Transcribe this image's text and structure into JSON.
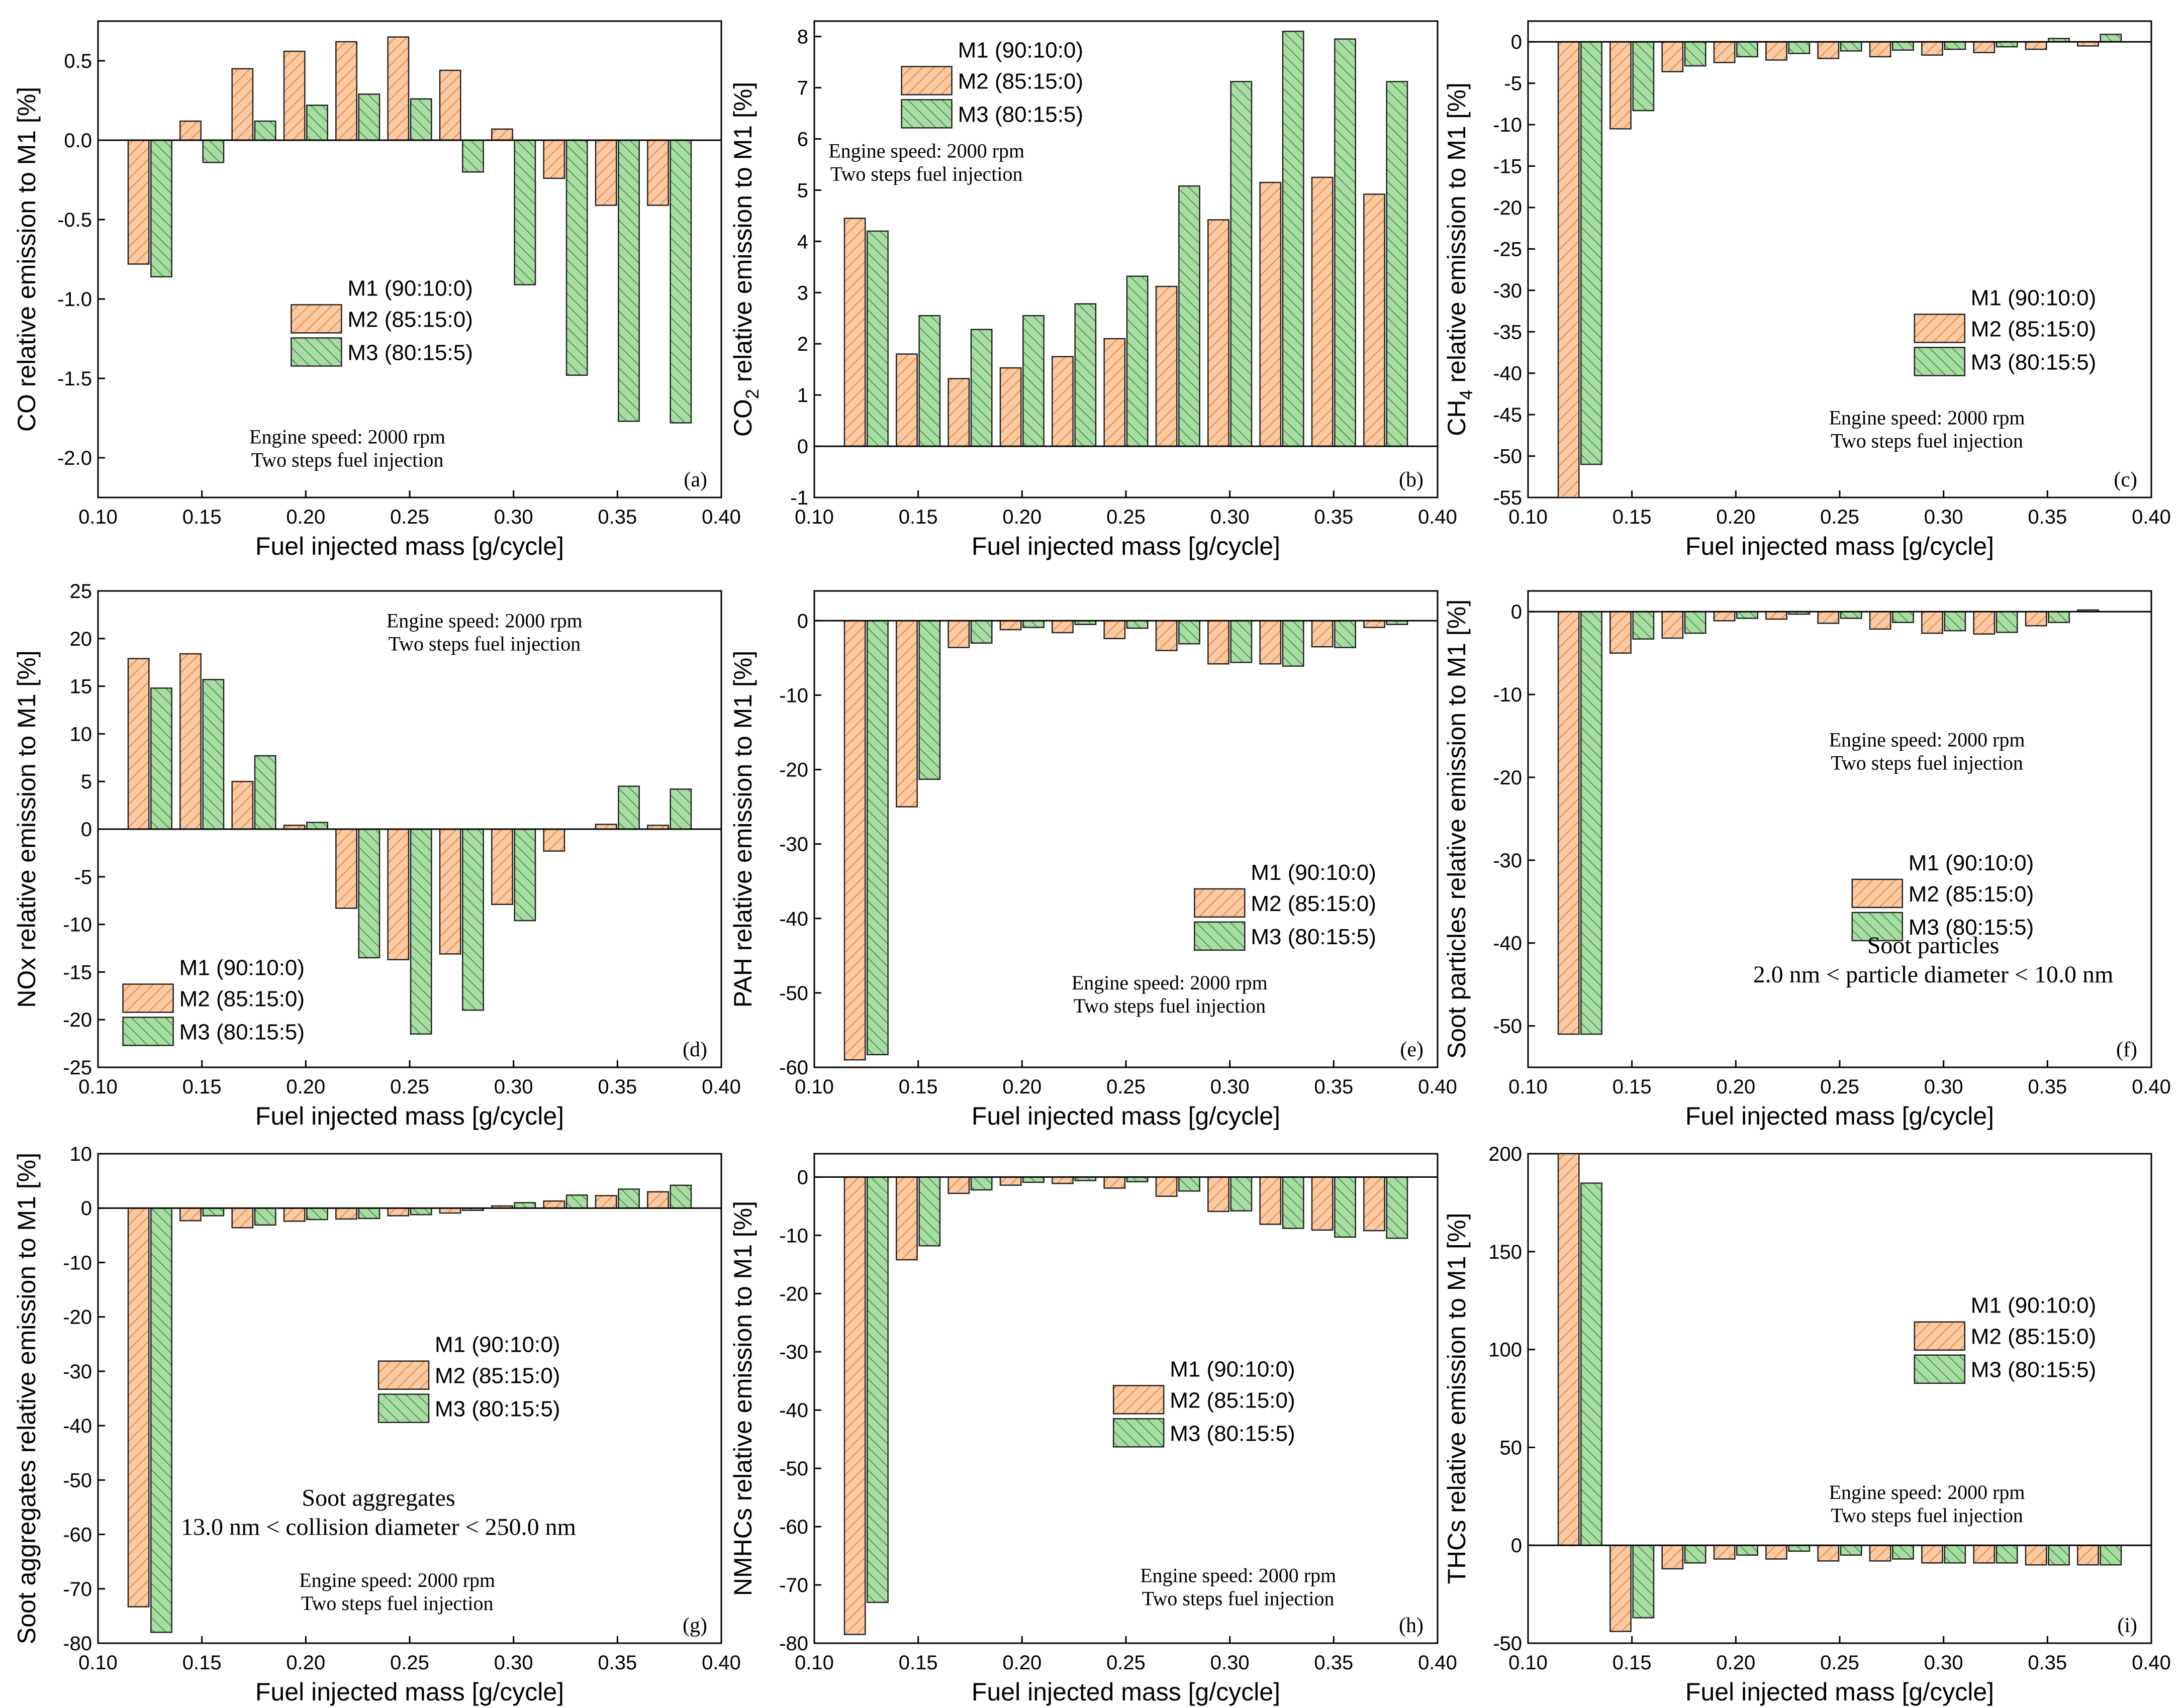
{
  "figure": {
    "legend_labels": [
      "M1 (90:10:0)",
      "M2 (85:15:0)",
      "M3 (80:15:5)"
    ],
    "colors": {
      "M2": "#fbc9a2",
      "M2_stroke": "#e07a2a",
      "M3": "#a9dca3",
      "M3_stroke": "#2f8a3d",
      "axis": "#000000"
    }
  },
  "chart_data": [
    {
      "id": "a",
      "type": "bar",
      "panel_label": "(a)",
      "xlabel": "Fuel injected mass  [g/cycle]",
      "ylabel": "CO relative emission to M1 [%]",
      "ylabel_sub": null,
      "xlim": [
        0.1,
        0.4
      ],
      "ylim": [
        -2.25,
        0.75
      ],
      "xticks": [
        "0.10",
        "0.15",
        "0.20",
        "0.25",
        "0.30",
        "0.35",
        "0.40"
      ],
      "yticks": [
        "0.5",
        "0.0",
        "-0.5",
        "-1.0",
        "-1.5",
        "-2.0"
      ],
      "x": [
        0.125,
        0.15,
        0.175,
        0.2,
        0.225,
        0.25,
        0.275,
        0.3,
        0.325,
        0.35,
        0.375
      ],
      "series": [
        {
          "name": "M2 (85:15:0)",
          "values": [
            -0.78,
            0.12,
            0.45,
            0.56,
            0.62,
            0.65,
            0.44,
            0.07,
            -0.24,
            -0.41,
            -0.41
          ]
        },
        {
          "name": "M3 (80:15:5)",
          "values": [
            -0.86,
            -0.14,
            0.12,
            0.22,
            0.29,
            0.26,
            -0.2,
            -0.91,
            -1.48,
            -1.77,
            -1.78
          ]
        }
      ],
      "notes": [
        "Engine speed: 2000 rpm",
        "Two steps fuel injection"
      ],
      "extra_notes": []
    },
    {
      "id": "b",
      "type": "bar",
      "panel_label": "(b)",
      "xlabel": "Fuel injected mass  [g/cycle]",
      "ylabel": "CO",
      "ylabel_sub": "2",
      "ylabel_rest": " relative emission to M1 [%]",
      "xlim": [
        0.1,
        0.4
      ],
      "ylim": [
        -1,
        8.3
      ],
      "xticks": [
        "0.10",
        "0.15",
        "0.20",
        "0.25",
        "0.30",
        "0.35",
        "0.40"
      ],
      "yticks": [
        "-1",
        "0",
        "1",
        "2",
        "3",
        "4",
        "5",
        "6",
        "7",
        "8"
      ],
      "x": [
        0.125,
        0.15,
        0.175,
        0.2,
        0.225,
        0.25,
        0.275,
        0.3,
        0.325,
        0.35,
        0.375
      ],
      "series": [
        {
          "name": "M2 (85:15:0)",
          "values": [
            4.45,
            1.8,
            1.32,
            1.53,
            1.75,
            2.1,
            3.12,
            4.42,
            5.15,
            5.25,
            4.92
          ]
        },
        {
          "name": "M3 (80:15:5)",
          "values": [
            4.2,
            2.55,
            2.28,
            2.55,
            2.78,
            3.32,
            5.08,
            7.12,
            8.1,
            7.95,
            7.12
          ]
        }
      ],
      "notes": [
        "Engine speed: 2000 rpm",
        "Two steps fuel injection"
      ],
      "extra_notes": []
    },
    {
      "id": "c",
      "type": "bar",
      "panel_label": "(c)",
      "xlabel": "Fuel injected mass  [g/cycle]",
      "ylabel": "CH",
      "ylabel_sub": "4",
      "ylabel_rest": " relative emission to M1 [%]",
      "xlim": [
        0.1,
        0.4
      ],
      "ylim": [
        -55,
        2.5
      ],
      "xticks": [
        "0.10",
        "0.15",
        "0.20",
        "0.25",
        "0.30",
        "0.35",
        "0.40"
      ],
      "yticks": [
        "0",
        "-5",
        "-10",
        "-15",
        "-20",
        "-25",
        "-30",
        "-35",
        "-40",
        "-45",
        "-50",
        "-55"
      ],
      "x": [
        0.125,
        0.15,
        0.175,
        0.2,
        0.225,
        0.25,
        0.275,
        0.3,
        0.325,
        0.35,
        0.375
      ],
      "series": [
        {
          "name": "M2 (85:15:0)",
          "values": [
            -55,
            -10.5,
            -3.6,
            -2.5,
            -2.2,
            -2.0,
            -1.8,
            -1.6,
            -1.3,
            -0.9,
            -0.5
          ]
        },
        {
          "name": "M3 (80:15:5)",
          "values": [
            -51,
            -8.3,
            -2.9,
            -1.8,
            -1.4,
            -1.1,
            -1.0,
            -0.9,
            -0.6,
            0.4,
            0.9
          ]
        }
      ],
      "notes": [
        "Engine speed: 2000 rpm",
        "Two steps fuel injection"
      ],
      "extra_notes": []
    },
    {
      "id": "d",
      "type": "bar",
      "panel_label": "(d)",
      "xlabel": "Fuel injected mass  [g/cycle]",
      "ylabel": "NOx relative emission to M1 [%]",
      "ylabel_sub": null,
      "xlim": [
        0.1,
        0.4
      ],
      "ylim": [
        -25,
        25
      ],
      "xticks": [
        "0.10",
        "0.15",
        "0.20",
        "0.25",
        "0.30",
        "0.35",
        "0.40"
      ],
      "yticks": [
        "25",
        "20",
        "15",
        "10",
        "5",
        "0",
        "-5",
        "-10",
        "-15",
        "-20",
        "-25"
      ],
      "x": [
        0.125,
        0.15,
        0.175,
        0.2,
        0.225,
        0.25,
        0.275,
        0.3,
        0.325,
        0.35,
        0.375
      ],
      "series": [
        {
          "name": "M2 (85:15:0)",
          "values": [
            17.9,
            18.4,
            5.0,
            0.4,
            -8.3,
            -13.7,
            -13.1,
            -7.9,
            -2.3,
            0.5,
            0.4
          ]
        },
        {
          "name": "M3 (80:15:5)",
          "values": [
            14.8,
            15.7,
            7.7,
            0.7,
            -13.5,
            -21.5,
            -19.0,
            -9.6,
            null,
            4.5,
            4.2
          ]
        }
      ],
      "notes": [
        "Engine speed: 2000 rpm",
        "Two steps fuel injection"
      ],
      "extra_notes": []
    },
    {
      "id": "e",
      "type": "bar",
      "panel_label": "(e)",
      "xlabel": "Fuel injected mass  [g/cycle]",
      "ylabel": "PAH relative emission to M1 [%]",
      "ylabel_sub": null,
      "xlim": [
        0.1,
        0.4
      ],
      "ylim": [
        -60,
        4
      ],
      "xticks": [
        "0.10",
        "0.15",
        "0.20",
        "0.25",
        "0.30",
        "0.35",
        "0.40"
      ],
      "yticks": [
        "0",
        "-10",
        "-20",
        "-30",
        "-40",
        "-50",
        "-60"
      ],
      "x": [
        0.125,
        0.15,
        0.175,
        0.2,
        0.225,
        0.25,
        0.275,
        0.3,
        0.325,
        0.35,
        0.375
      ],
      "series": [
        {
          "name": "M2 (85:15:0)",
          "values": [
            -59,
            -25,
            -3.6,
            -1.2,
            -1.6,
            -2.4,
            -4.0,
            -5.8,
            -5.8,
            -3.5,
            -0.9
          ]
        },
        {
          "name": "M3 (80:15:5)",
          "values": [
            -58.3,
            -21.3,
            -3.0,
            -0.9,
            -0.5,
            -1.0,
            -3.1,
            -5.6,
            -6.1,
            -3.6,
            -0.5
          ]
        }
      ],
      "notes": [
        "Engine speed: 2000 rpm",
        "Two steps fuel injection"
      ],
      "extra_notes": []
    },
    {
      "id": "f",
      "type": "bar",
      "panel_label": "(f)",
      "xlabel": "Fuel injected mass  [g/cycle]",
      "ylabel": "Soot particles relative emission to M1 [%]",
      "ylabel_sub": null,
      "xlim": [
        0.1,
        0.4
      ],
      "ylim": [
        -55,
        2.5
      ],
      "xticks": [
        "0.10",
        "0.15",
        "0.20",
        "0.25",
        "0.30",
        "0.35",
        "0.40"
      ],
      "yticks": [
        "0",
        "-10",
        "-20",
        "-30",
        "-40",
        "-50"
      ],
      "x": [
        0.125,
        0.15,
        0.175,
        0.2,
        0.225,
        0.25,
        0.275,
        0.3,
        0.325,
        0.35,
        0.375
      ],
      "series": [
        {
          "name": "M2 (85:15:0)",
          "values": [
            -51,
            -5.0,
            -3.2,
            -1.1,
            -0.9,
            -1.4,
            -2.1,
            -2.6,
            -2.7,
            -1.7,
            0.2
          ]
        },
        {
          "name": "M3 (80:15:5)",
          "values": [
            -51,
            -3.3,
            -2.6,
            -0.8,
            -0.3,
            -0.8,
            -1.3,
            -2.3,
            -2.5,
            -1.3,
            null
          ]
        }
      ],
      "notes": [
        "Engine speed: 2000 rpm",
        "Two steps fuel injection"
      ],
      "extra_notes": [
        "Soot particles",
        "2.0 nm < particle diameter < 10.0 nm"
      ]
    },
    {
      "id": "g",
      "type": "bar",
      "panel_label": "(g)",
      "xlabel": "Fuel injected mass  [g/cycle]",
      "ylabel": "Soot aggregates relative emission to M1 [%]",
      "ylabel_sub": null,
      "xlim": [
        0.1,
        0.4
      ],
      "ylim": [
        -80,
        10
      ],
      "xticks": [
        "0.10",
        "0.15",
        "0.20",
        "0.25",
        "0.30",
        "0.35",
        "0.40"
      ],
      "yticks": [
        "10",
        "0",
        "-10",
        "-20",
        "-30",
        "-40",
        "-50",
        "-60",
        "-70",
        "-80"
      ],
      "x": [
        0.125,
        0.15,
        0.175,
        0.2,
        0.225,
        0.25,
        0.275,
        0.3,
        0.325,
        0.35,
        0.375
      ],
      "series": [
        {
          "name": "M2 (85:15:0)",
          "values": [
            -73.3,
            -2.3,
            -3.6,
            -2.4,
            -2.0,
            -1.4,
            -0.9,
            0.4,
            1.3,
            2.3,
            3.0
          ]
        },
        {
          "name": "M3 (80:15:5)",
          "values": [
            -78,
            -1.4,
            -3.1,
            -2.1,
            -1.9,
            -1.2,
            -0.4,
            1.0,
            2.4,
            3.5,
            4.2
          ]
        }
      ],
      "notes": [
        "Engine speed: 2000 rpm",
        "Two steps fuel injection"
      ],
      "extra_notes": [
        "Soot aggregates",
        "13.0 nm < collision diameter < 250.0 nm"
      ]
    },
    {
      "id": "h",
      "type": "bar",
      "panel_label": "(h)",
      "xlabel": "Fuel injected mass  [g/cycle]",
      "ylabel": "NMHCs relative emission to M1 [%]",
      "ylabel_sub": null,
      "xlim": [
        0.1,
        0.4
      ],
      "ylim": [
        -80,
        4
      ],
      "xticks": [
        "0.10",
        "0.15",
        "0.20",
        "0.25",
        "0.30",
        "0.35",
        "0.40"
      ],
      "yticks": [
        "0",
        "-10",
        "-20",
        "-30",
        "-40",
        "-50",
        "-60",
        "-70",
        "-80"
      ],
      "x": [
        0.125,
        0.15,
        0.175,
        0.2,
        0.225,
        0.25,
        0.275,
        0.3,
        0.325,
        0.35,
        0.375
      ],
      "series": [
        {
          "name": "M2 (85:15:0)",
          "values": [
            -78.5,
            -14.2,
            -2.8,
            -1.4,
            -1.1,
            -1.9,
            -3.3,
            -5.9,
            -8.1,
            -9.1,
            -9.2
          ]
        },
        {
          "name": "M3 (80:15:5)",
          "values": [
            -73,
            -11.8,
            -2.2,
            -0.9,
            -0.6,
            -0.8,
            -2.4,
            -5.8,
            -8.8,
            -10.3,
            -10.5
          ]
        }
      ],
      "notes": [
        "Engine speed: 2000 rpm",
        "Two steps fuel injection"
      ],
      "extra_notes": []
    },
    {
      "id": "i",
      "type": "bar",
      "panel_label": "(i)",
      "xlabel": "Fuel injected mass  [g/cycle]",
      "ylabel": "THCs relative emission to M1 [%]",
      "ylabel_sub": null,
      "xlim": [
        0.1,
        0.4
      ],
      "ylim": [
        -50,
        200
      ],
      "xticks": [
        "0.10",
        "0.15",
        "0.20",
        "0.25",
        "0.30",
        "0.35",
        "0.40"
      ],
      "yticks": [
        "200",
        "150",
        "100",
        "50",
        "0",
        "-50"
      ],
      "x": [
        0.125,
        0.15,
        0.175,
        0.2,
        0.225,
        0.25,
        0.275,
        0.3,
        0.325,
        0.35,
        0.375
      ],
      "series": [
        {
          "name": "M2 (85:15:0)",
          "values": [
            200,
            -44,
            -12,
            -7,
            -7,
            -8,
            -8,
            -9,
            -9,
            -10,
            -10
          ]
        },
        {
          "name": "M3 (80:15:5)",
          "values": [
            185,
            -37,
            -9,
            -5,
            -3,
            -5,
            -7,
            -9,
            -9,
            -10,
            -10
          ]
        }
      ],
      "notes": [
        "Engine speed: 2000 rpm",
        "Two steps fuel injection"
      ],
      "extra_notes": []
    }
  ]
}
